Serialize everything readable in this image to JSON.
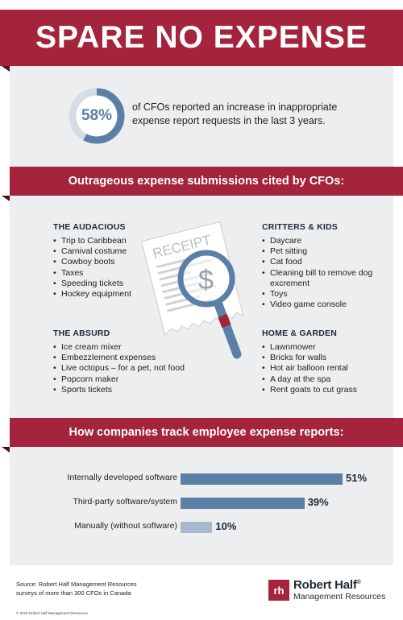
{
  "title": "SPARE NO EXPENSE",
  "stat": {
    "percent_label": "58%",
    "percent_value": 58,
    "text": "of CFOs reported an increase in inappropriate expense report requests in the last 3 years."
  },
  "submissions_heading": "Outrageous expense submissions cited by CFOs:",
  "groups": {
    "audacious": {
      "title": "THE AUDACIOUS",
      "items": [
        "Trip to Caribbean",
        "Carnival costume",
        "Cowboy boots",
        "Taxes",
        "Speeding tickets",
        "Hockey equipment"
      ]
    },
    "critters": {
      "title": "CRITTERS & KIDS",
      "items": [
        "Daycare",
        "Pet sitting",
        "Cat food",
        "Cleaning bill to remove dog excrement",
        "Toys",
        "Video game console"
      ]
    },
    "absurd": {
      "title": "THE ABSURD",
      "items": [
        "Ice cream mixer",
        "Embezzlement expenses",
        "Live octopus – for a pet, not food",
        "Popcorn maker",
        "Sports tickets"
      ]
    },
    "home": {
      "title": "HOME & GARDEN",
      "items": [
        "Lawnmower",
        "Bricks for walls",
        "Hot air balloon rental",
        "A day at the spa",
        "Rent goats to cut grass"
      ]
    }
  },
  "receipt": {
    "label": "RECEIPT",
    "symbol": "$"
  },
  "tracking_heading": "How companies track employee expense reports:",
  "tracking": [
    {
      "label": "Internally developed software",
      "value": 51,
      "value_label": "51%",
      "color": "#5b7fa6"
    },
    {
      "label": "Third-party software/system",
      "value": 39,
      "value_label": "39%",
      "color": "#5b7fa6"
    },
    {
      "label": "Manually (without software)",
      "value": 10,
      "value_label": "10%",
      "color": "#a7b9cf"
    }
  ],
  "source": {
    "line1": "Source: Robert Half Management Resources",
    "line2": "surveys of more than 300 CFOs in Canada"
  },
  "copyright": "© 2019 Robert Half Management Resources",
  "logo": {
    "mark": "rh",
    "name": "Robert Half",
    "reg": "®",
    "sub": "Management Resources"
  },
  "colors": {
    "accent": "#a3243b",
    "accent_dark": "#4a0f1b",
    "bar": "#5b7fa6",
    "bar_light": "#a7b9cf",
    "panel": "#eceef0"
  }
}
